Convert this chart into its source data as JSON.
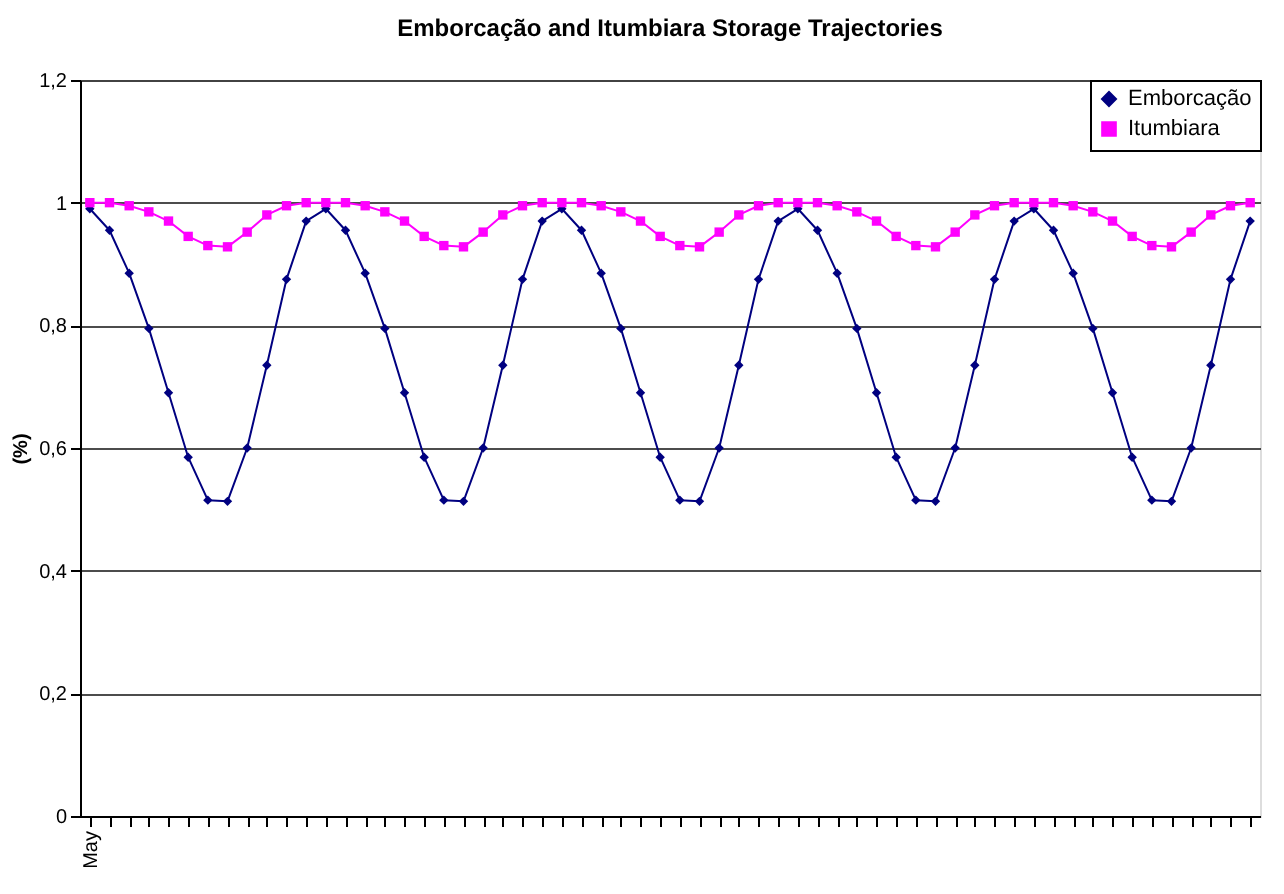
{
  "chart_data": {
    "type": "line",
    "title": "Emborcação and Itumbiara Storage Trajectories",
    "ylabel": "(%)",
    "categories": [
      "May",
      null,
      null,
      null,
      null,
      null,
      null,
      null,
      null,
      null,
      null,
      null,
      null,
      null,
      null,
      null,
      null,
      null,
      null,
      null,
      null,
      null,
      null,
      null,
      null,
      null,
      null,
      null,
      null,
      null,
      null,
      null,
      null,
      null,
      null,
      null,
      null,
      null,
      null,
      null,
      null,
      null,
      null,
      null,
      null,
      null,
      null,
      null,
      null,
      null,
      null,
      null,
      null,
      null,
      null,
      null,
      null,
      null,
      null,
      null
    ],
    "series": [
      {
        "name": "Emborcação",
        "color": "#000080",
        "marker": "diamond",
        "values": [
          0.99,
          0.955,
          0.885,
          0.795,
          0.69,
          0.585,
          0.515,
          0.513,
          0.6,
          0.735,
          0.875,
          0.97,
          0.99,
          0.955,
          0.885,
          0.795,
          0.69,
          0.585,
          0.515,
          0.513,
          0.6,
          0.735,
          0.875,
          0.97,
          0.99,
          0.955,
          0.885,
          0.795,
          0.69,
          0.585,
          0.515,
          0.513,
          0.6,
          0.735,
          0.875,
          0.97,
          0.99,
          0.955,
          0.885,
          0.795,
          0.69,
          0.585,
          0.515,
          0.513,
          0.6,
          0.735,
          0.875,
          0.97,
          0.99,
          0.955,
          0.885,
          0.795,
          0.69,
          0.585,
          0.515,
          0.513,
          0.6,
          0.735,
          0.875,
          0.97
        ]
      },
      {
        "name": "Itumbiara",
        "color": "#ff00ff",
        "marker": "square",
        "values": [
          1.0,
          1.0,
          0.995,
          0.985,
          0.97,
          0.945,
          0.93,
          0.928,
          0.952,
          0.98,
          0.995,
          1.0,
          1.0,
          1.0,
          0.995,
          0.985,
          0.97,
          0.945,
          0.93,
          0.928,
          0.952,
          0.98,
          0.995,
          1.0,
          1.0,
          1.0,
          0.995,
          0.985,
          0.97,
          0.945,
          0.93,
          0.928,
          0.952,
          0.98,
          0.995,
          1.0,
          1.0,
          1.0,
          0.995,
          0.985,
          0.97,
          0.945,
          0.93,
          0.928,
          0.952,
          0.98,
          0.995,
          1.0,
          1.0,
          1.0,
          0.995,
          0.985,
          0.97,
          0.945,
          0.93,
          0.928,
          0.952,
          0.98,
          0.995,
          1.0
        ]
      }
    ],
    "ylim": [
      0,
      1.2
    ],
    "yticks": [
      0,
      {
        "value": 0.2,
        "label": "0,2"
      },
      {
        "value": 0.4,
        "label": "0,4"
      },
      {
        "value": 0.6,
        "label": "0,6"
      },
      {
        "value": 0.8,
        "label": "0,8"
      },
      1,
      {
        "value": 1.2,
        "label": "1,2"
      }
    ],
    "grid": "y",
    "legend": "top right",
    "line_style": "solid"
  }
}
